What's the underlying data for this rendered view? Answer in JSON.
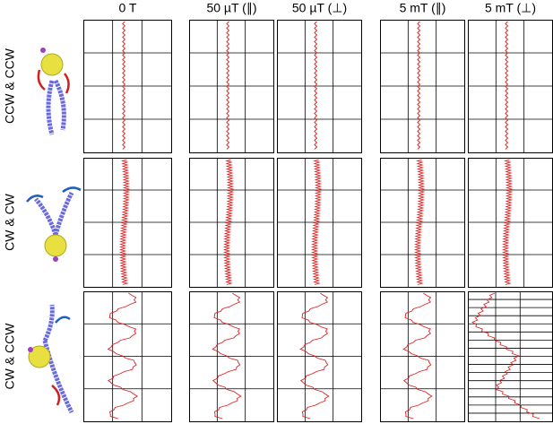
{
  "columns": [
    "0 T",
    "50 µT (∥)",
    "50 µT (⊥)",
    "5 mT (∥)",
    "5 mT (⊥)"
  ],
  "rows": [
    "CCW & CCW",
    "CW & CW",
    "CW & CCW"
  ]
}
